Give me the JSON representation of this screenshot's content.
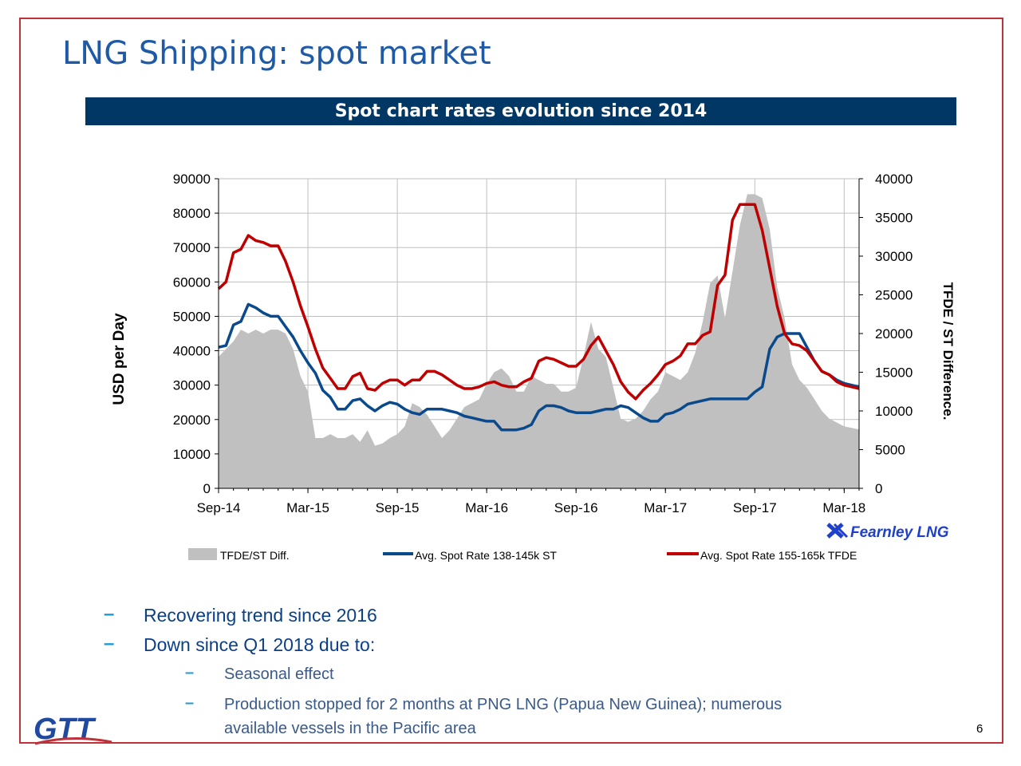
{
  "slide": {
    "title": "LNG Shipping: spot market",
    "banner": "Spot chart rates evolution since 2014",
    "page_number": "6",
    "logo_text": "GTT",
    "source_logo": "Fearnley LNG",
    "bullets": [
      {
        "text": "Recovering trend since 2016"
      },
      {
        "text": "Down since Q1 2018 due to:",
        "sub": [
          {
            "text": "Seasonal effect"
          },
          {
            "text": "Production stopped  for 2 months at PNG LNG (Papua New Guinea); numerous"
          },
          {
            "text": "available vessels in the Pacific area"
          }
        ]
      }
    ]
  },
  "chart_data": {
    "type": "line",
    "ylabel": "USD per Day",
    "y2label": "TFDE / ST Difference.",
    "ylim": [
      0,
      90000
    ],
    "y2lim": [
      0,
      40000
    ],
    "yticks": [
      0,
      10000,
      20000,
      30000,
      40000,
      50000,
      60000,
      70000,
      80000,
      90000
    ],
    "y2ticks": [
      0,
      5000,
      10000,
      15000,
      20000,
      25000,
      30000,
      35000,
      40000
    ],
    "xticks": [
      "Sep-14",
      "Mar-15",
      "Sep-15",
      "Mar-16",
      "Sep-16",
      "Mar-17",
      "Sep-17",
      "Mar-18"
    ],
    "xlim": [
      0,
      43
    ],
    "grid": true,
    "legend_position": "bottom",
    "colors": {
      "area": "#c0c0c0",
      "st": "#0a4a8c",
      "tfde": "#c00000",
      "grid": "#bfbfbf"
    },
    "series": [
      {
        "name": "TFDE/ST Diff.",
        "type": "area",
        "axis": "right",
        "x": [
          0,
          0.5,
          1,
          1.5,
          2,
          2.5,
          3,
          3.5,
          4,
          4.5,
          5,
          5.5,
          6,
          6.5,
          7,
          7.5,
          8,
          8.5,
          9,
          9.5,
          10,
          10.5,
          11,
          11.5,
          12,
          12.5,
          13,
          13.5,
          14,
          14.5,
          15,
          15.5,
          16,
          16.5,
          17,
          17.5,
          18,
          18.5,
          19,
          19.5,
          20,
          20.5,
          21,
          21.5,
          22,
          22.5,
          23,
          23.5,
          24,
          24.5,
          25,
          25.5,
          26,
          26.5,
          27,
          27.5,
          28,
          28.5,
          29,
          29.5,
          30,
          30.5,
          31,
          31.5,
          32,
          32.5,
          33,
          33.5,
          34,
          34.5,
          35,
          35.5,
          36,
          36.5,
          37,
          37.5,
          38,
          38.5,
          39,
          39.5,
          40,
          40.5,
          41,
          41.5,
          42,
          42.5,
          43
        ],
        "y": [
          17000,
          18000,
          19000,
          20500,
          20000,
          20500,
          20000,
          20500,
          20500,
          20000,
          18000,
          14500,
          12500,
          6500,
          6500,
          7000,
          6500,
          6500,
          7000,
          6000,
          7500,
          5500,
          5800,
          6500,
          7000,
          8000,
          11000,
          10500,
          9500,
          8000,
          6500,
          7500,
          9000,
          10500,
          11000,
          11500,
          13500,
          15000,
          15500,
          14500,
          12500,
          12500,
          14500,
          14000,
          13500,
          13500,
          12500,
          12500,
          13000,
          17000,
          21500,
          18000,
          17000,
          13000,
          9000,
          8600,
          9000,
          10000,
          11500,
          12500,
          15000,
          14500,
          14000,
          15000,
          17500,
          21500,
          26500,
          27500,
          22000,
          28000,
          34000,
          38000,
          38000,
          37500,
          33500,
          26000,
          22000,
          16000,
          14000,
          13000,
          11500,
          10000,
          9000,
          8500,
          8000,
          7800,
          7600
        ]
      },
      {
        "name": "Avg. Spot Rate 138-145k ST",
        "type": "line",
        "axis": "left",
        "x": [
          0,
          0.5,
          1,
          1.5,
          2,
          2.5,
          3,
          3.5,
          4,
          4.5,
          5,
          5.5,
          6,
          6.5,
          7,
          7.5,
          8,
          8.5,
          9,
          9.5,
          10,
          10.5,
          11,
          11.5,
          12,
          12.5,
          13,
          13.5,
          14,
          14.5,
          15,
          15.5,
          16,
          16.5,
          17,
          17.5,
          18,
          18.5,
          19,
          19.5,
          20,
          20.5,
          21,
          21.5,
          22,
          22.5,
          23,
          23.5,
          24,
          24.5,
          25,
          25.5,
          26,
          26.5,
          27,
          27.5,
          28,
          28.5,
          29,
          29.5,
          30,
          30.5,
          31,
          31.5,
          32,
          32.5,
          33,
          33.5,
          34,
          34.5,
          35,
          35.5,
          36,
          36.5,
          37,
          37.5,
          38,
          38.5,
          39,
          39.5,
          40,
          40.5,
          41,
          41.5,
          42,
          42.5,
          43
        ],
        "y": [
          41000,
          41500,
          47500,
          48500,
          53500,
          52500,
          51000,
          50000,
          50000,
          47000,
          44000,
          40000,
          36500,
          33500,
          28500,
          26500,
          23000,
          23000,
          25500,
          26000,
          24000,
          22500,
          24000,
          25000,
          24500,
          23000,
          22000,
          21500,
          23000,
          23000,
          23000,
          22500,
          22000,
          21000,
          20500,
          20000,
          19500,
          19500,
          17000,
          17000,
          17000,
          17500,
          18500,
          22500,
          24000,
          24000,
          23500,
          22500,
          22000,
          22000,
          22000,
          22500,
          23000,
          23000,
          24000,
          23500,
          22000,
          20500,
          19500,
          19500,
          21500,
          22000,
          23000,
          24500,
          25000,
          25500,
          26000,
          26000,
          26000,
          26000,
          26000,
          26000,
          28000,
          29500,
          40500,
          44000,
          45000,
          45000,
          45000,
          41000,
          37000,
          34000,
          33000,
          31500,
          30500,
          30000,
          29500
        ]
      },
      {
        "name": "Avg. Spot Rate 155-165k TFDE",
        "type": "line",
        "axis": "left",
        "x": [
          0,
          0.5,
          1,
          1.5,
          2,
          2.5,
          3,
          3.5,
          4,
          4.5,
          5,
          5.5,
          6,
          6.5,
          7,
          7.5,
          8,
          8.5,
          9,
          9.5,
          10,
          10.5,
          11,
          11.5,
          12,
          12.5,
          13,
          13.5,
          14,
          14.5,
          15,
          15.5,
          16,
          16.5,
          17,
          17.5,
          18,
          18.5,
          19,
          19.5,
          20,
          20.5,
          21,
          21.5,
          22,
          22.5,
          23,
          23.5,
          24,
          24.5,
          25,
          25.5,
          26,
          26.5,
          27,
          27.5,
          28,
          28.5,
          29,
          29.5,
          30,
          30.5,
          31,
          31.5,
          32,
          32.5,
          33,
          33.5,
          34,
          34.5,
          35,
          35.5,
          36,
          36.5,
          37,
          37.5,
          38,
          38.5,
          39,
          39.5,
          40,
          40.5,
          41,
          41.5,
          42,
          42.5,
          43
        ],
        "y": [
          58000,
          60000,
          68500,
          69500,
          73500,
          72000,
          71500,
          70500,
          70500,
          66000,
          60000,
          53000,
          47000,
          40500,
          35000,
          32000,
          29000,
          29000,
          32500,
          33500,
          29000,
          28500,
          30500,
          31500,
          31500,
          30000,
          31500,
          31500,
          34000,
          34000,
          33000,
          31500,
          30000,
          29000,
          29000,
          29500,
          30500,
          31000,
          30000,
          29500,
          29500,
          31000,
          32000,
          37000,
          38000,
          37500,
          36500,
          35500,
          35500,
          37500,
          41500,
          44000,
          40000,
          36000,
          31000,
          28000,
          26000,
          28500,
          30500,
          33000,
          36000,
          37000,
          38500,
          42000,
          42000,
          44500,
          45500,
          59000,
          62000,
          78000,
          82500,
          82500,
          82500,
          75000,
          64000,
          53000,
          45000,
          42000,
          41500,
          40000,
          37000,
          34000,
          33000,
          31000,
          30000,
          29500,
          29000
        ]
      }
    ]
  }
}
